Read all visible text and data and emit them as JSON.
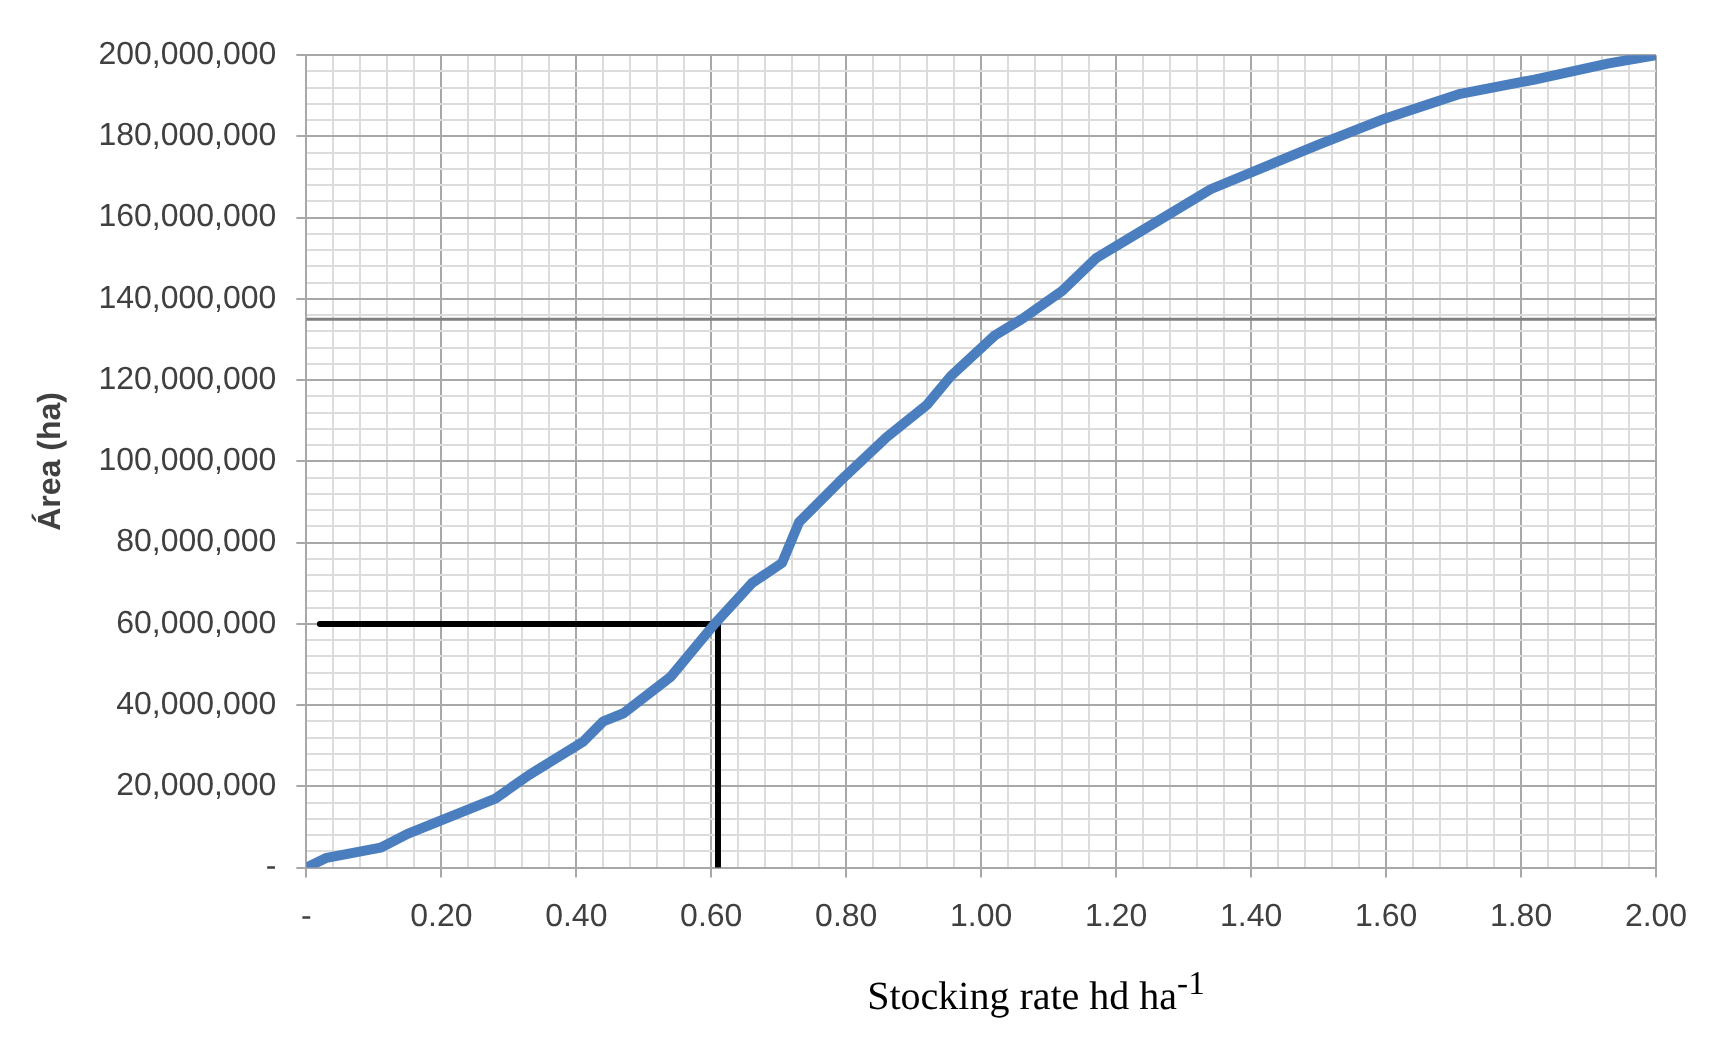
{
  "chart_data": {
    "type": "line",
    "xlabel": "Stocking rate hd ha$^{-1}$",
    "ylabel": "Área (ha)",
    "xlim": [
      0,
      2
    ],
    "ylim": [
      0,
      200000000
    ],
    "grid": true,
    "marker": "none",
    "line_style": "solid",
    "xticks": [
      {
        "value": 0,
        "label": "-"
      },
      {
        "value": 0.04,
        "label": null
      },
      {
        "value": 0.08,
        "label": null
      },
      {
        "value": 0.12,
        "label": null
      },
      {
        "value": 0.16,
        "label": null
      },
      {
        "value": 0.2,
        "label": "0.20"
      },
      {
        "value": 0.24,
        "label": null
      },
      {
        "value": 0.28,
        "label": null
      },
      {
        "value": 0.32,
        "label": null
      },
      {
        "value": 0.36,
        "label": null
      },
      {
        "value": 0.4,
        "label": "0.40"
      },
      {
        "value": 0.44,
        "label": null
      },
      {
        "value": 0.48,
        "label": null
      },
      {
        "value": 0.52,
        "label": null
      },
      {
        "value": 0.56,
        "label": null
      },
      {
        "value": 0.6,
        "label": "0.60"
      },
      {
        "value": 0.64,
        "label": null
      },
      {
        "value": 0.68,
        "label": null
      },
      {
        "value": 0.72,
        "label": null
      },
      {
        "value": 0.76,
        "label": null
      },
      {
        "value": 0.8,
        "label": "0.80"
      },
      {
        "value": 0.84,
        "label": null
      },
      {
        "value": 0.88,
        "label": null
      },
      {
        "value": 0.92,
        "label": null
      },
      {
        "value": 0.96,
        "label": null
      },
      {
        "value": 1,
        "label": "1.00"
      },
      {
        "value": 1.04,
        "label": null
      },
      {
        "value": 1.08,
        "label": null
      },
      {
        "value": 1.12,
        "label": null
      },
      {
        "value": 1.16,
        "label": null
      },
      {
        "value": 1.2,
        "label": "1.20"
      },
      {
        "value": 1.24,
        "label": null
      },
      {
        "value": 1.28,
        "label": null
      },
      {
        "value": 1.32,
        "label": null
      },
      {
        "value": 1.36,
        "label": null
      },
      {
        "value": 1.4,
        "label": "1.40"
      },
      {
        "value": 1.44,
        "label": null
      },
      {
        "value": 1.48,
        "label": null
      },
      {
        "value": 1.52,
        "label": null
      },
      {
        "value": 1.56,
        "label": null
      },
      {
        "value": 1.6,
        "label": "1.60"
      },
      {
        "value": 1.64,
        "label": null
      },
      {
        "value": 1.68,
        "label": null
      },
      {
        "value": 1.72,
        "label": null
      },
      {
        "value": 1.76,
        "label": null
      },
      {
        "value": 1.8,
        "label": "1.80"
      },
      {
        "value": 1.84,
        "label": null
      },
      {
        "value": 1.88,
        "label": null
      },
      {
        "value": 1.92,
        "label": null
      },
      {
        "value": 1.96,
        "label": null
      },
      {
        "value": 2,
        "label": "2.00"
      }
    ],
    "yticks": [
      {
        "value": 0,
        "label": "-"
      },
      {
        "value": 4000000,
        "label": null
      },
      {
        "value": 8000000,
        "label": null
      },
      {
        "value": 12000000,
        "label": null
      },
      {
        "value": 16000000,
        "label": null
      },
      {
        "value": 20000000,
        "label": "20,000,000"
      },
      {
        "value": 24000000,
        "label": null
      },
      {
        "value": 28000000,
        "label": null
      },
      {
        "value": 32000000,
        "label": null
      },
      {
        "value": 36000000,
        "label": null
      },
      {
        "value": 40000000,
        "label": "40,000,000"
      },
      {
        "value": 44000000,
        "label": null
      },
      {
        "value": 48000000,
        "label": null
      },
      {
        "value": 52000000,
        "label": null
      },
      {
        "value": 56000000,
        "label": null
      },
      {
        "value": 60000000,
        "label": "60,000,000"
      },
      {
        "value": 64000000,
        "label": null
      },
      {
        "value": 68000000,
        "label": null
      },
      {
        "value": 72000000,
        "label": null
      },
      {
        "value": 76000000,
        "label": null
      },
      {
        "value": 80000000,
        "label": "80,000,000"
      },
      {
        "value": 84000000,
        "label": null
      },
      {
        "value": 88000000,
        "label": null
      },
      {
        "value": 92000000,
        "label": null
      },
      {
        "value": 96000000,
        "label": null
      },
      {
        "value": 100000000,
        "label": "100,000,000"
      },
      {
        "value": 104000000,
        "label": null
      },
      {
        "value": 108000000,
        "label": null
      },
      {
        "value": 112000000,
        "label": null
      },
      {
        "value": 116000000,
        "label": null
      },
      {
        "value": 120000000,
        "label": "120,000,000"
      },
      {
        "value": 124000000,
        "label": null
      },
      {
        "value": 128000000,
        "label": null
      },
      {
        "value": 132000000,
        "label": null
      },
      {
        "value": 136000000,
        "label": null
      },
      {
        "value": 140000000,
        "label": "140,000,000"
      },
      {
        "value": 144000000,
        "label": null
      },
      {
        "value": 148000000,
        "label": null
      },
      {
        "value": 152000000,
        "label": null
      },
      {
        "value": 156000000,
        "label": null
      },
      {
        "value": 160000000,
        "label": "160,000,000"
      },
      {
        "value": 164000000,
        "label": null
      },
      {
        "value": 168000000,
        "label": null
      },
      {
        "value": 172000000,
        "label": null
      },
      {
        "value": 176000000,
        "label": null
      },
      {
        "value": 180000000,
        "label": "180,000,000"
      },
      {
        "value": 184000000,
        "label": null
      },
      {
        "value": 188000000,
        "label": null
      },
      {
        "value": 192000000,
        "label": null
      },
      {
        "value": 196000000,
        "label": null
      },
      {
        "value": 200000000,
        "label": "200,000,000"
      }
    ],
    "ref_lines": [
      {
        "axis": "y",
        "value": 135000000,
        "color": "#808080"
      }
    ],
    "series": [
      {
        "color": "#4a7ebf",
        "x": [
          0,
          0.03,
          0.11,
          0.15,
          0.22,
          0.28,
          0.33,
          0.41,
          0.44,
          0.47,
          0.54,
          0.605,
          0.66,
          0.705,
          0.73,
          0.79,
          0.86,
          0.92,
          0.955,
          1.02,
          1.06,
          1.12,
          1.17,
          1.24,
          1.34,
          1.5,
          1.6,
          1.71,
          1.82,
          1.93,
          2
        ],
        "values": [
          0,
          2400000,
          4900000,
          8300000,
          13000000,
          17000000,
          22800000,
          31000000,
          36000000,
          38000000,
          47000000,
          60000000,
          70000000,
          75000000,
          85000000,
          95000000,
          106000000,
          114000000,
          121000000,
          131000000,
          135000000,
          142000000,
          150000000,
          157000000,
          167000000,
          178000000,
          184500000,
          190500000,
          194000000,
          198000000,
          200000000
        ]
      },
      {
        "type": "line",
        "color": "#000000",
        "x": [
          0.02,
          0.6
        ],
        "values": [
          60000000,
          60000000
        ]
      },
      {
        "type": "line",
        "color": "#000000",
        "x": [
          0.61,
          0.61
        ],
        "values": [
          60000000,
          0
        ]
      }
    ]
  }
}
